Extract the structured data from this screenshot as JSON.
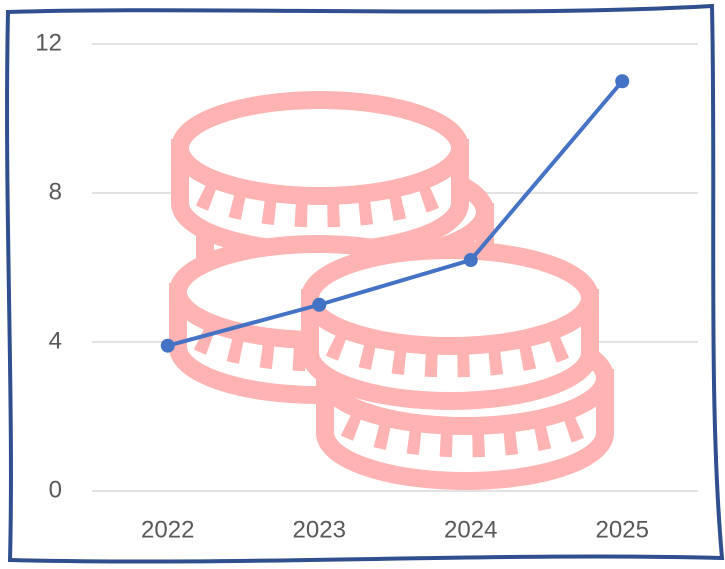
{
  "chart_data": {
    "type": "line",
    "categories": [
      "2022",
      "2023",
      "2024",
      "2025"
    ],
    "series": [
      {
        "color": "#4472c4",
        "values": [
          3.9,
          5.0,
          6.2,
          11.0
        ]
      }
    ],
    "ylim": [
      0,
      12
    ],
    "yticks": [
      0,
      4,
      8,
      12
    ],
    "grid": true
  }
}
